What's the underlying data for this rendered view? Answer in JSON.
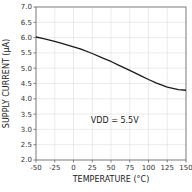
{
  "chart_data": {
    "type": "line",
    "title": "",
    "xlabel": "TEMPERATURE (°C)",
    "ylabel": "SUPPLY CURRENT (μA)",
    "x": [
      -50,
      -40,
      -25,
      -10,
      0,
      10,
      25,
      40,
      50,
      60,
      75,
      90,
      100,
      110,
      125,
      140,
      150
    ],
    "values": [
      6.02,
      5.97,
      5.88,
      5.77,
      5.7,
      5.62,
      5.48,
      5.32,
      5.22,
      5.1,
      4.93,
      4.75,
      4.63,
      4.52,
      4.38,
      4.3,
      4.28
    ],
    "color": "#1a1a1a",
    "xlim": [
      -50,
      150
    ],
    "ylim": [
      2.0,
      7.0
    ],
    "xticks": [
      -50,
      -25,
      0,
      25,
      50,
      75,
      100,
      125,
      150
    ],
    "yticks": [
      {
        "value": 2.0,
        "label": "2.0"
      },
      2.5,
      {
        "value": 3.0,
        "label": "3.0"
      },
      3.5,
      {
        "value": 4.0,
        "label": "4.0"
      },
      4.5,
      {
        "value": 5.0,
        "label": "5.0"
      },
      5.5,
      {
        "value": 6.0,
        "label": "6.0"
      },
      6.5,
      {
        "value": 7.0,
        "label": "7.0"
      }
    ],
    "grid": true,
    "annotations": [
      {
        "text": "VDD = 5.5V",
        "x": 55,
        "y": 3.3
      }
    ]
  }
}
